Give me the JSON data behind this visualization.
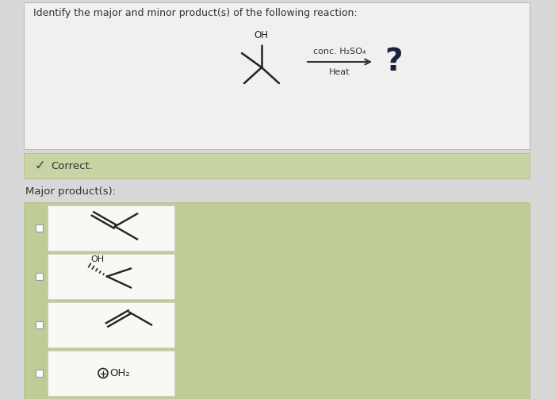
{
  "bg_color": "#d8d8d8",
  "top_panel_color": "#f2f0ee",
  "green_panel_color": "#bfcc96",
  "green_banner_color": "#c8d4a4",
  "white_cell_color": "#f8f8f4",
  "correct_text": "Correct.",
  "major_product_text": "Major product(s):",
  "question_title": "Identify the major and minor product(s) of the following reaction:",
  "arrow_label_top": "conc. H₂SO₄",
  "arrow_label_bottom": "Heat",
  "question_mark": "?",
  "text_color": "#333333",
  "mol_color": "#222222",
  "dark_text": "#1a2040"
}
